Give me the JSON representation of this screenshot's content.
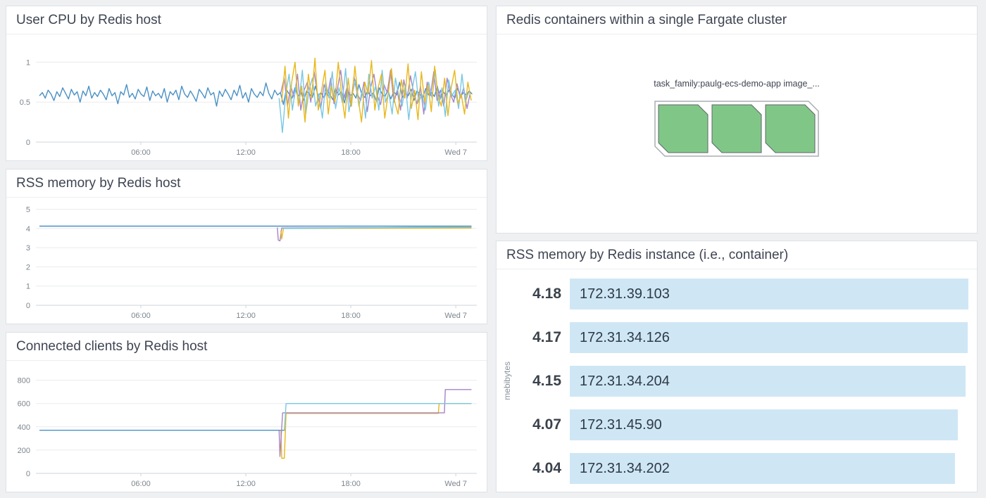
{
  "page": {
    "background": "#eef0f2"
  },
  "panels": {
    "cpu": {
      "title": "User CPU by Redis host"
    },
    "rss": {
      "title": "RSS memory by Redis host"
    },
    "clients": {
      "title": "Connected clients by Redis host"
    },
    "containers": {
      "title": "Redis containers within a single Fargate cluster",
      "group_label": "task_family:paulg-ecs-demo-app image_...",
      "count": 3,
      "hex_fill": "#80c787",
      "hex_stroke": "#60666c"
    },
    "toplist": {
      "title": "RSS memory by Redis instance (i.e., container)",
      "unit": "mebibytes"
    }
  },
  "chart_data": [
    {
      "id": "cpu",
      "type": "line",
      "title": "User CPU by Redis host",
      "xlim": [
        0,
        25.2
      ],
      "ylim": [
        0,
        1.25
      ],
      "yticks": [
        0,
        0.5,
        1
      ],
      "xticks": [
        {
          "v": 6,
          "label": "06:00"
        },
        {
          "v": 12,
          "label": "12:00"
        },
        {
          "v": 18,
          "label": "18:00"
        },
        {
          "v": 24,
          "label": "Wed 7"
        }
      ],
      "grid": true,
      "legend": "none",
      "series": [
        {
          "color": "#4a90c4",
          "x0": 0.2,
          "dx": 0.166,
          "values": [
            0.58,
            0.62,
            0.55,
            0.65,
            0.6,
            0.52,
            0.63,
            0.57,
            0.68,
            0.61,
            0.54,
            0.66,
            0.59,
            0.63,
            0.5,
            0.64,
            0.58,
            0.7,
            0.55,
            0.62,
            0.57,
            0.65,
            0.6,
            0.53,
            0.67,
            0.58,
            0.62,
            0.48,
            0.63,
            0.59,
            0.72,
            0.56,
            0.61,
            0.54,
            0.66,
            0.6,
            0.57,
            0.69,
            0.52,
            0.64,
            0.58,
            0.61,
            0.55,
            0.67,
            0.5,
            0.63,
            0.59,
            0.65,
            0.53,
            0.7,
            0.6,
            0.56,
            0.64,
            0.58,
            0.51,
            0.66,
            0.61,
            0.55,
            0.68,
            0.59,
            0.62,
            0.45,
            0.64,
            0.57,
            0.66,
            0.6,
            0.53,
            0.65,
            0.58,
            0.71,
            0.55,
            0.62,
            0.5,
            0.67,
            0.6,
            0.56,
            0.63,
            0.58,
            0.74,
            0.61,
            0.54,
            0.65,
            0.59,
            0.62,
            0.47,
            0.66,
            0.6,
            0.55,
            0.68,
            0.57,
            0.63,
            0.52,
            0.64,
            0.6,
            0.56,
            0.7,
            0.58,
            0.62,
            0.55,
            0.65,
            0.6,
            0.53,
            0.67,
            0.59,
            0.63,
            0.49,
            0.66,
            0.58,
            0.61,
            0.55,
            0.72,
            0.6,
            0.56,
            0.64,
            0.58,
            0.62,
            0.51,
            0.68,
            0.6,
            0.57,
            0.65,
            0.54,
            0.63,
            0.59,
            0.75,
            0.56,
            0.61,
            0.58,
            0.66,
            0.52,
            0.64,
            0.6,
            0.55,
            0.67,
            0.59,
            0.62,
            0.57,
            0.7,
            0.54,
            0.63,
            0.58,
            0.65,
            0.6,
            0.55,
            0.68,
            0.57,
            0.62,
            0.59,
            0.64,
            0.6
          ]
        },
        {
          "color": "#a584c9",
          "x0": 14.0,
          "dx": 0.19,
          "values": [
            0.62,
            0.8,
            0.45,
            0.7,
            0.55,
            0.85,
            0.4,
            0.65,
            0.75,
            0.5,
            0.88,
            0.6,
            0.42,
            0.72,
            0.58,
            0.8,
            0.48,
            0.66,
            0.9,
            0.55,
            0.7,
            0.45,
            0.82,
            0.6,
            0.52,
            0.75,
            0.38,
            0.68,
            0.85,
            0.58,
            0.47,
            0.72,
            0.62,
            0.9,
            0.5,
            0.65,
            0.4,
            0.78,
            0.55,
            0.83,
            0.6,
            0.48,
            0.7,
            0.35,
            0.75,
            0.58,
            0.88,
            0.52,
            0.65,
            0.45,
            0.8,
            0.6,
            0.5,
            0.73,
            0.55,
            0.68,
            0.42,
            0.62
          ]
        },
        {
          "color": "#79c7e3",
          "x0": 13.9,
          "dx": 0.19,
          "values": [
            0.55,
            0.12,
            0.6,
            0.85,
            0.4,
            0.7,
            0.5,
            0.9,
            0.35,
            0.65,
            0.8,
            0.45,
            0.6,
            0.3,
            0.75,
            0.55,
            0.88,
            0.42,
            0.68,
            0.5,
            0.92,
            0.38,
            0.6,
            0.78,
            0.45,
            0.65,
            0.3,
            0.85,
            0.55,
            0.7,
            0.4,
            0.9,
            0.5,
            0.62,
            0.35,
            0.8,
            0.58,
            0.45,
            0.72,
            0.28,
            0.65,
            0.88,
            0.5,
            0.6,
            0.4,
            0.75,
            0.55,
            0.9,
            0.45,
            0.68,
            0.32,
            0.78,
            0.58,
            0.65,
            0.42,
            0.85,
            0.5,
            0.62
          ]
        },
        {
          "color": "#e8b71a",
          "x0": 14.05,
          "dx": 0.19,
          "values": [
            0.5,
            0.95,
            0.3,
            0.75,
            1.0,
            0.45,
            0.7,
            0.25,
            0.85,
            0.55,
            1.05,
            0.4,
            0.65,
            0.9,
            0.35,
            0.7,
            0.5,
            1.0,
            0.6,
            0.3,
            0.8,
            0.45,
            0.95,
            0.55,
            0.25,
            0.75,
            0.6,
            1.02,
            0.4,
            0.68,
            0.85,
            0.3,
            0.6,
            0.92,
            0.5,
            0.35,
            0.78,
            0.55,
            0.98,
            0.42,
            0.65,
            0.28,
            0.88,
            0.5,
            0.72,
            0.38,
            0.95,
            0.58,
            0.45,
            0.8,
            0.33,
            0.68,
            0.9,
            0.48,
            0.6,
            0.35,
            0.75,
            0.52
          ]
        }
      ]
    },
    {
      "id": "rss",
      "type": "line",
      "title": "RSS memory by Redis host",
      "xlim": [
        0,
        25.2
      ],
      "ylim": [
        0,
        5.2
      ],
      "yticks": [
        0,
        1,
        2,
        3,
        4,
        5
      ],
      "xticks": [
        {
          "v": 6,
          "label": "06:00"
        },
        {
          "v": 12,
          "label": "12:00"
        },
        {
          "v": 18,
          "label": "18:00"
        },
        {
          "v": 24,
          "label": "Wed 7"
        }
      ],
      "grid": true,
      "legend": "none",
      "series": [
        {
          "color": "#4a90c4",
          "points": [
            [
              0.2,
              4.12
            ],
            [
              24.9,
              4.12
            ]
          ]
        },
        {
          "color": "#a584c9",
          "points": [
            [
              13.8,
              4.05
            ],
            [
              13.85,
              3.4
            ],
            [
              13.95,
              3.35
            ],
            [
              14.05,
              4.02
            ],
            [
              24.9,
              4.05
            ]
          ]
        },
        {
          "color": "#e8b71a",
          "points": [
            [
              14.0,
              3.9
            ],
            [
              14.05,
              3.45
            ],
            [
              14.15,
              4.0
            ],
            [
              24.9,
              4.02
            ]
          ]
        },
        {
          "color": "#79c7e3",
          "points": [
            [
              14.1,
              4.0
            ],
            [
              24.9,
              4.08
            ]
          ]
        }
      ]
    },
    {
      "id": "clients",
      "type": "line",
      "title": "Connected clients by Redis host",
      "xlim": [
        0,
        25.2
      ],
      "ylim": [
        0,
        900
      ],
      "yticks": [
        0,
        200,
        400,
        600,
        800
      ],
      "xticks": [
        {
          "v": 6,
          "label": "06:00"
        },
        {
          "v": 12,
          "label": "12:00"
        },
        {
          "v": 18,
          "label": "18:00"
        },
        {
          "v": 24,
          "label": "Wed 7"
        }
      ],
      "grid": true,
      "legend": "none",
      "series": [
        {
          "color": "#4a90c4",
          "points": [
            [
              0.2,
              370
            ],
            [
              14.25,
              370
            ]
          ]
        },
        {
          "color": "#e8b71a",
          "points": [
            [
              14.0,
              370
            ],
            [
              14.05,
              130
            ],
            [
              14.2,
              130
            ],
            [
              14.3,
              515
            ],
            [
              23.0,
              515
            ],
            [
              23.05,
              600
            ],
            [
              24.9,
              600
            ]
          ]
        },
        {
          "color": "#a584c9",
          "points": [
            [
              13.9,
              370
            ],
            [
              13.95,
              145
            ],
            [
              14.1,
              520
            ],
            [
              23.35,
              520
            ],
            [
              23.4,
              720
            ],
            [
              24.9,
              720
            ]
          ]
        },
        {
          "color": "#79c7e3",
          "points": [
            [
              14.2,
              370
            ],
            [
              14.3,
              600
            ],
            [
              24.9,
              600
            ]
          ]
        }
      ]
    },
    {
      "id": "rss_by_instance",
      "type": "bar",
      "orientation": "horizontal",
      "title": "RSS memory by Redis instance (i.e., container)",
      "ylabel": "mebibytes",
      "max": 4.18,
      "bar_color": "#cfe7f5",
      "rows": [
        {
          "value": 4.18,
          "label": "172.31.39.103"
        },
        {
          "value": 4.17,
          "label": "172.31.34.126"
        },
        {
          "value": 4.15,
          "label": "172.31.34.204"
        },
        {
          "value": 4.07,
          "label": "172.31.45.90"
        },
        {
          "value": 4.04,
          "label": "172.31.34.202"
        }
      ]
    }
  ]
}
